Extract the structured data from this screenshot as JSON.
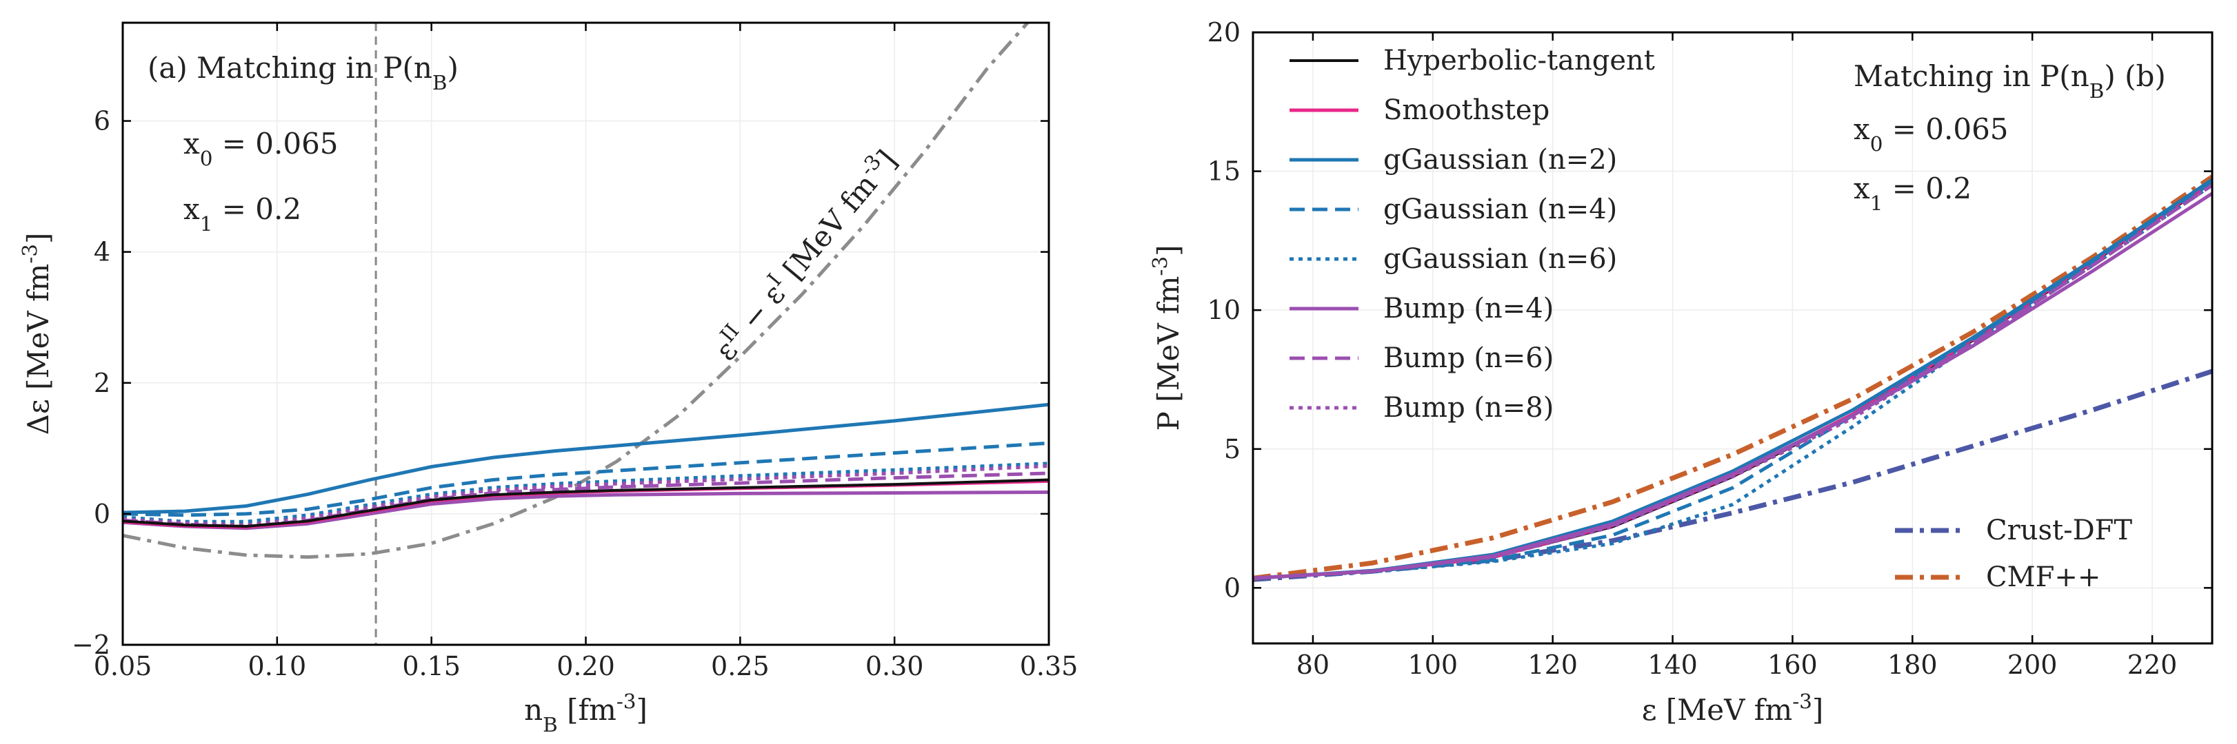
{
  "chart_data": [
    {
      "type": "line",
      "panel": "a",
      "annotation": "(a) Matching in P(n_B)",
      "params": [
        "x_0 = 0.065",
        "x_1 = 0.2"
      ],
      "xlabel": "n_B [fm^-3]",
      "ylabel": "Δε [MeV fm^-3]",
      "xlim": [
        0.05,
        0.35
      ],
      "ylim": [
        -2,
        7.5
      ],
      "xticks": [
        0.05,
        0.1,
        0.15,
        0.2,
        0.25,
        0.3,
        0.35
      ],
      "xticklabels": [
        "0.05",
        "0.10",
        "0.15",
        "0.20",
        "0.25",
        "0.30",
        "0.35"
      ],
      "yticks": [
        -2,
        0,
        2,
        4,
        6
      ],
      "yticklabels": [
        "−2",
        "0",
        "2",
        "4",
        "6"
      ],
      "vline_x": 0.132,
      "curve_label": "ε^II − ε^I [MeV fm^-3]",
      "series": [
        {
          "name": "εII − εI",
          "color": "#8c8c8c",
          "dash": "dashdot",
          "width": 5,
          "x": [
            0.05,
            0.07,
            0.09,
            0.11,
            0.13,
            0.15,
            0.17,
            0.19,
            0.21,
            0.23,
            0.25,
            0.27,
            0.29,
            0.31,
            0.33,
            0.345
          ],
          "y": [
            -0.33,
            -0.52,
            -0.63,
            -0.66,
            -0.61,
            -0.45,
            -0.15,
            0.25,
            0.8,
            1.5,
            2.4,
            3.35,
            4.4,
            5.55,
            6.8,
            7.6
          ]
        },
        {
          "name": "gGaussian (n=2)",
          "color": "#1f77b4",
          "dash": "solid",
          "width": 5,
          "x": [
            0.05,
            0.07,
            0.09,
            0.11,
            0.13,
            0.15,
            0.17,
            0.19,
            0.21,
            0.25,
            0.3,
            0.35
          ],
          "y": [
            0.02,
            0.04,
            0.12,
            0.3,
            0.52,
            0.72,
            0.86,
            0.96,
            1.04,
            1.2,
            1.42,
            1.67
          ]
        },
        {
          "name": "gGaussian (n=4)",
          "color": "#1f77b4",
          "dash": "dashed",
          "width": 5,
          "x": [
            0.05,
            0.07,
            0.09,
            0.11,
            0.13,
            0.15,
            0.17,
            0.19,
            0.21,
            0.25,
            0.3,
            0.35
          ],
          "y": [
            0.0,
            -0.02,
            0.0,
            0.07,
            0.22,
            0.4,
            0.52,
            0.6,
            0.66,
            0.78,
            0.93,
            1.08
          ]
        },
        {
          "name": "gGaussian (n=6)",
          "color": "#1f77b4",
          "dash": "dotted",
          "width": 5,
          "x": [
            0.05,
            0.07,
            0.09,
            0.11,
            0.13,
            0.15,
            0.17,
            0.19,
            0.21,
            0.25,
            0.3,
            0.35
          ],
          "y": [
            -0.05,
            -0.12,
            -0.12,
            -0.02,
            0.14,
            0.3,
            0.4,
            0.46,
            0.5,
            0.58,
            0.67,
            0.77
          ]
        },
        {
          "name": "Bump (n=8)",
          "color": "#9b4fb0",
          "dash": "dotted",
          "width": 5,
          "x": [
            0.05,
            0.07,
            0.09,
            0.11,
            0.13,
            0.15,
            0.17,
            0.19,
            0.21,
            0.25,
            0.3,
            0.35
          ],
          "y": [
            -0.08,
            -0.14,
            -0.17,
            -0.06,
            0.1,
            0.26,
            0.36,
            0.42,
            0.46,
            0.53,
            0.62,
            0.73
          ]
        },
        {
          "name": "Bump (n=6)",
          "color": "#9b4fb0",
          "dash": "dashed",
          "width": 5,
          "x": [
            0.05,
            0.07,
            0.09,
            0.11,
            0.13,
            0.15,
            0.17,
            0.19,
            0.21,
            0.25,
            0.3,
            0.35
          ],
          "y": [
            -0.1,
            -0.16,
            -0.2,
            -0.1,
            0.06,
            0.22,
            0.32,
            0.37,
            0.41,
            0.47,
            0.55,
            0.62
          ]
        },
        {
          "name": "Bump (n=4)",
          "color": "#9b4fb0",
          "dash": "solid",
          "width": 5,
          "x": [
            0.05,
            0.07,
            0.09,
            0.11,
            0.13,
            0.15,
            0.17,
            0.19,
            0.21,
            0.25,
            0.3,
            0.35
          ],
          "y": [
            -0.13,
            -0.19,
            -0.22,
            -0.15,
            0.0,
            0.15,
            0.23,
            0.27,
            0.29,
            0.31,
            0.32,
            0.33
          ]
        },
        {
          "name": "Smoothstep",
          "color": "#e7298a",
          "dash": "solid",
          "width": 5,
          "x": [
            0.05,
            0.07,
            0.09,
            0.11,
            0.13,
            0.15,
            0.17,
            0.19,
            0.21,
            0.25,
            0.3,
            0.35
          ],
          "y": [
            -0.12,
            -0.18,
            -0.2,
            -0.12,
            0.04,
            0.2,
            0.28,
            0.32,
            0.35,
            0.39,
            0.44,
            0.5
          ]
        },
        {
          "name": "Hyperbolic-tangent",
          "color": "#111111",
          "dash": "solid",
          "width": 4,
          "x": [
            0.05,
            0.07,
            0.09,
            0.11,
            0.13,
            0.15,
            0.17,
            0.19,
            0.21,
            0.25,
            0.3,
            0.35
          ],
          "y": [
            -0.11,
            -0.17,
            -0.19,
            -0.11,
            0.05,
            0.21,
            0.29,
            0.33,
            0.36,
            0.4,
            0.45,
            0.52
          ]
        }
      ]
    },
    {
      "type": "line",
      "panel": "b",
      "annotation": "Matching in P(n_B)   (b)",
      "params": [
        "x_0 = 0.065",
        "x_1 = 0.2"
      ],
      "xlabel": "ε [MeV fm^-3]",
      "ylabel": "P [MeV fm^-3]",
      "xlim": [
        70,
        230
      ],
      "ylim": [
        -2,
        20
      ],
      "xticks": [
        80,
        100,
        120,
        140,
        160,
        180,
        200,
        220
      ],
      "xticklabels": [
        "80",
        "100",
        "120",
        "140",
        "160",
        "180",
        "200",
        "220"
      ],
      "yticks": [
        0,
        5,
        10,
        15,
        20
      ],
      "yticklabels": [
        "0",
        "5",
        "10",
        "15",
        "20"
      ],
      "legend_position": "upper-left",
      "legend2_position": "lower-right",
      "series": [
        {
          "name": "Crust-DFT",
          "color": "#4c58a6",
          "dash": "dashdot",
          "width": 7,
          "legend": 2,
          "x": [
            70,
            90,
            110,
            130,
            150,
            170,
            190,
            210,
            230
          ],
          "y": [
            0.3,
            0.6,
            1.0,
            1.7,
            2.7,
            3.8,
            5.1,
            6.4,
            7.8
          ]
        },
        {
          "name": "CMF++",
          "color": "#c8602b",
          "dash": "dashdot",
          "width": 7,
          "legend": 2,
          "x": [
            70,
            90,
            110,
            130,
            150,
            170,
            190,
            210,
            230
          ],
          "y": [
            0.35,
            0.9,
            1.8,
            3.1,
            4.8,
            6.8,
            9.2,
            11.9,
            14.8
          ]
        },
        {
          "name": "Hyperbolic-tangent",
          "color": "#111111",
          "dash": "solid",
          "width": 4,
          "legend": 1,
          "x": [
            70,
            90,
            110,
            130,
            150,
            170,
            190,
            210,
            230
          ],
          "y": [
            0.35,
            0.6,
            1.1,
            2.2,
            4.0,
            6.2,
            8.9,
            11.7,
            14.6
          ]
        },
        {
          "name": "Smoothstep",
          "color": "#e7298a",
          "dash": "solid",
          "width": 5,
          "legend": 1,
          "x": [
            70,
            90,
            110,
            130,
            150,
            170,
            190,
            210,
            230
          ],
          "y": [
            0.35,
            0.6,
            1.1,
            2.25,
            4.05,
            6.25,
            8.95,
            11.75,
            14.65
          ]
        },
        {
          "name": "gGaussian (n=2)",
          "color": "#1f77b4",
          "dash": "solid",
          "width": 5,
          "legend": 1,
          "x": [
            70,
            90,
            110,
            130,
            150,
            170,
            190,
            210,
            230
          ],
          "y": [
            0.35,
            0.62,
            1.2,
            2.4,
            4.2,
            6.4,
            9.0,
            11.8,
            14.7
          ]
        },
        {
          "name": "gGaussian (n=4)",
          "color": "#1f77b4",
          "dash": "dashed",
          "width": 5,
          "legend": 1,
          "x": [
            70,
            90,
            110,
            130,
            150,
            170,
            190,
            210,
            230
          ],
          "y": [
            0.35,
            0.6,
            1.0,
            1.9,
            3.6,
            6.2,
            8.9,
            11.7,
            14.6
          ]
        },
        {
          "name": "gGaussian (n=6)",
          "color": "#1f77b4",
          "dash": "dotted",
          "width": 5,
          "legend": 1,
          "x": [
            70,
            90,
            110,
            130,
            150,
            170,
            190,
            210,
            230
          ],
          "y": [
            0.35,
            0.58,
            0.95,
            1.6,
            3.0,
            5.8,
            8.8,
            11.6,
            14.5
          ]
        },
        {
          "name": "Bump (n=4)",
          "color": "#9b4fb0",
          "dash": "solid",
          "width": 5,
          "legend": 1,
          "x": [
            70,
            90,
            110,
            130,
            150,
            170,
            190,
            210,
            230
          ],
          "y": [
            0.35,
            0.6,
            1.15,
            2.3,
            4.1,
            6.2,
            8.7,
            11.4,
            14.2
          ]
        },
        {
          "name": "Bump (n=6)",
          "color": "#9b4fb0",
          "dash": "dashed",
          "width": 5,
          "legend": 1,
          "x": [
            70,
            90,
            110,
            130,
            150,
            170,
            190,
            210,
            230
          ],
          "y": [
            0.35,
            0.6,
            1.12,
            2.25,
            4.05,
            6.2,
            8.8,
            11.6,
            14.5
          ]
        },
        {
          "name": "Bump (n=8)",
          "color": "#9b4fb0",
          "dash": "dotted",
          "width": 5,
          "legend": 1,
          "x": [
            70,
            90,
            110,
            130,
            150,
            170,
            190,
            210,
            230
          ],
          "y": [
            0.35,
            0.6,
            1.1,
            2.2,
            4.0,
            6.1,
            8.8,
            11.6,
            14.5
          ]
        }
      ]
    }
  ]
}
